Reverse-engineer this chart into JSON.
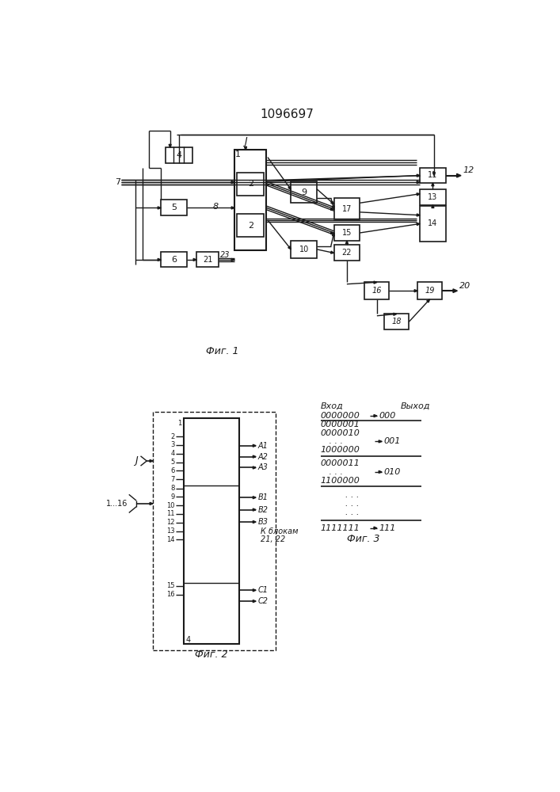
{
  "title": "1096697",
  "bg_color": "#ffffff",
  "line_color": "#1a1a1a",
  "fig1_caption": "Фиг. 1",
  "fig2_caption": "Фиг. 2",
  "fig3_caption": "Фиг. 3"
}
